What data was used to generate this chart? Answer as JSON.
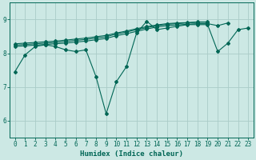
{
  "title": "",
  "xlabel": "Humidex (Indice chaleur)",
  "background_color": "#cce8e4",
  "grid_color": "#aaccc8",
  "line_color": "#006655",
  "xlim": [
    -0.5,
    23.5
  ],
  "ylim": [
    5.5,
    9.5
  ],
  "xticks": [
    0,
    1,
    2,
    3,
    4,
    5,
    6,
    7,
    8,
    9,
    10,
    11,
    12,
    13,
    14,
    15,
    16,
    17,
    18,
    19,
    20,
    21,
    22,
    23
  ],
  "yticks": [
    6,
    7,
    8,
    9
  ],
  "series_jagged": [
    7.45,
    7.95,
    8.2,
    8.25,
    8.2,
    8.1,
    8.05,
    8.1,
    7.3,
    6.2,
    7.15,
    7.6,
    8.6,
    8.95,
    8.7,
    8.75,
    8.8,
    8.85,
    8.85,
    8.85,
    8.05,
    8.3,
    8.7,
    8.75
  ],
  "series_smooth": [
    [
      0,
      8.2,
      21,
      8.9
    ],
    [
      0,
      8.25,
      19,
      8.9
    ],
    [
      0,
      8.3,
      19,
      8.92
    ],
    [
      0,
      8.35,
      22,
      8.88
    ]
  ],
  "trend_points": [
    [
      [
        0,
        8.2
      ],
      [
        1,
        8.22
      ],
      [
        2,
        8.24
      ],
      [
        3,
        8.26
      ],
      [
        4,
        8.28
      ],
      [
        5,
        8.3
      ],
      [
        6,
        8.33
      ],
      [
        7,
        8.36
      ],
      [
        8,
        8.4
      ],
      [
        9,
        8.44
      ],
      [
        10,
        8.52
      ],
      [
        11,
        8.58
      ],
      [
        12,
        8.65
      ],
      [
        13,
        8.72
      ],
      [
        14,
        8.78
      ],
      [
        15,
        8.82
      ],
      [
        16,
        8.84
      ],
      [
        17,
        8.86
      ],
      [
        18,
        8.88
      ],
      [
        19,
        8.88
      ],
      [
        20,
        8.82
      ],
      [
        21,
        8.9
      ]
    ],
    [
      [
        0,
        8.24
      ],
      [
        1,
        8.26
      ],
      [
        2,
        8.28
      ],
      [
        3,
        8.3
      ],
      [
        4,
        8.32
      ],
      [
        5,
        8.35
      ],
      [
        6,
        8.38
      ],
      [
        7,
        8.41
      ],
      [
        8,
        8.45
      ],
      [
        9,
        8.49
      ],
      [
        10,
        8.57
      ],
      [
        11,
        8.63
      ],
      [
        12,
        8.7
      ],
      [
        13,
        8.76
      ],
      [
        14,
        8.82
      ],
      [
        15,
        8.86
      ],
      [
        16,
        8.88
      ],
      [
        17,
        8.9
      ],
      [
        18,
        8.92
      ],
      [
        19,
        8.92
      ]
    ],
    [
      [
        0,
        8.28
      ],
      [
        1,
        8.3
      ],
      [
        2,
        8.32
      ],
      [
        3,
        8.34
      ],
      [
        4,
        8.36
      ],
      [
        5,
        8.39
      ],
      [
        6,
        8.42
      ],
      [
        7,
        8.45
      ],
      [
        8,
        8.49
      ],
      [
        9,
        8.53
      ],
      [
        10,
        8.6
      ],
      [
        11,
        8.66
      ],
      [
        12,
        8.73
      ],
      [
        13,
        8.79
      ],
      [
        14,
        8.84
      ],
      [
        15,
        8.88
      ],
      [
        16,
        8.9
      ],
      [
        17,
        8.91
      ],
      [
        18,
        8.93
      ],
      [
        19,
        8.93
      ]
    ]
  ]
}
